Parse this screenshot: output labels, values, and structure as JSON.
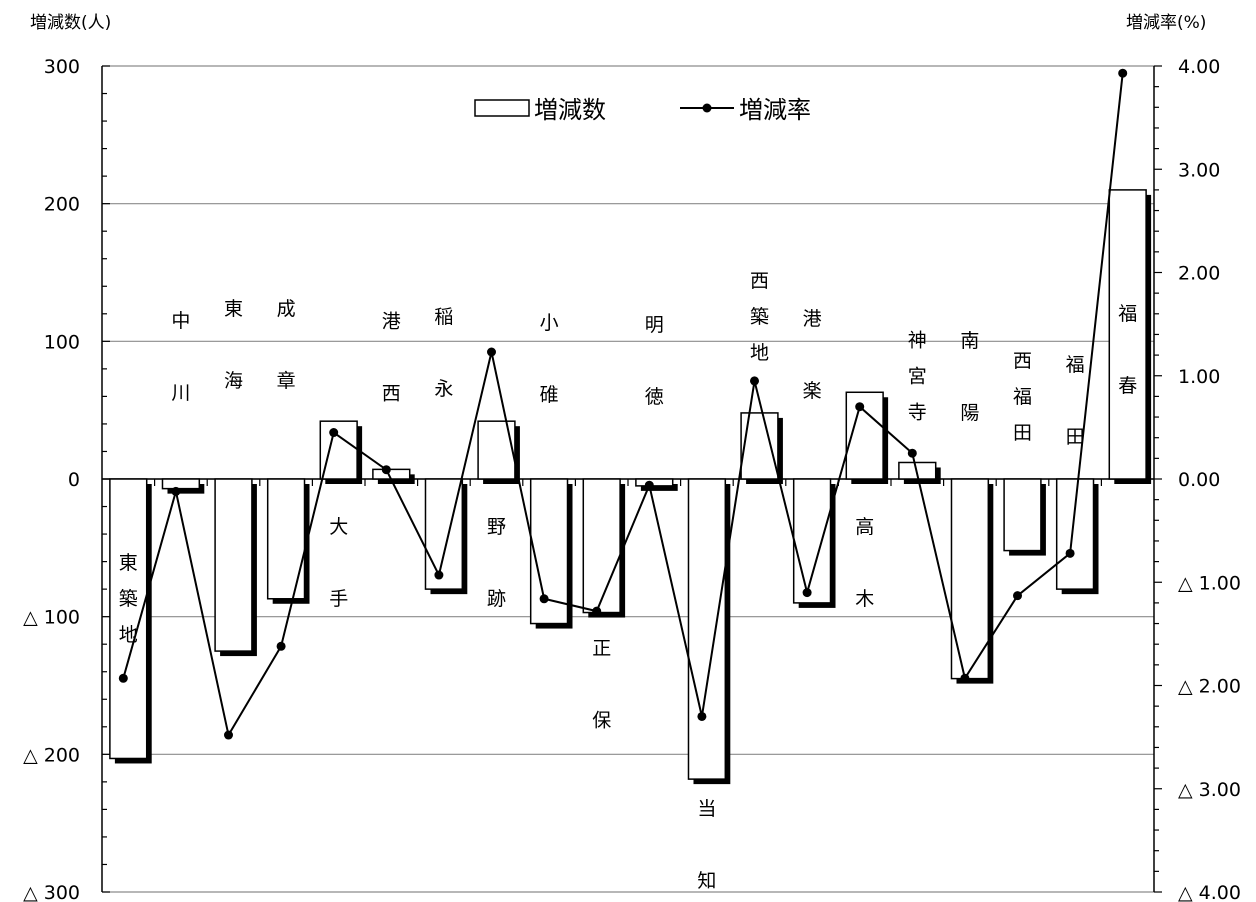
{
  "chart_data": {
    "type": "bar+line",
    "ylabel_left": "増減数(人)",
    "ylabel_right": "増減率(%)",
    "ylim_left": [
      -300,
      300
    ],
    "ylim_right": [
      -4.0,
      4.0
    ],
    "yticks_left": [
      "300",
      "200",
      "100",
      "0",
      "△ 100",
      "△ 200",
      "△ 300"
    ],
    "yticks_right": [
      "4.00",
      "3.00",
      "2.00",
      "1.00",
      "0.00",
      "△ 1.00",
      "△ 2.00",
      "△ 3.00",
      "△ 4.00"
    ],
    "grid": true,
    "legend": {
      "placement": "top-center",
      "bar_label": "増減数",
      "line_label": "増減率"
    },
    "categories": [
      "東築地",
      "中川",
      "東海",
      "成章",
      "大手",
      "港西",
      "稲永",
      "野跡",
      "小碓",
      "正保",
      "明徳",
      "当知",
      "西築地",
      "港楽",
      "高木",
      "神宮寺",
      "南陽",
      "西福田",
      "福田",
      "福春"
    ],
    "category_labels": [
      "東\n築\n地",
      "中\n\n川",
      "東\n\n海",
      "成\n\n章",
      "大\n\n手",
      "港\n\n西",
      "稲\n\n永",
      "野\n\n跡",
      "小\n\n碓",
      "正\n\n保",
      "明\n\n徳",
      "当\n\n知",
      "西\n築\n地",
      "港\n\n楽",
      "高\n\n木",
      "神\n宮\n寺",
      "南\n\n陽",
      "西\n福\n田",
      "福\n\n田",
      "福\n\n春"
    ],
    "series": [
      {
        "name": "増減数",
        "type": "bar",
        "values": [
          -203,
          -7,
          -125,
          -87,
          42,
          7,
          -80,
          42,
          -105,
          -97,
          -5,
          -218,
          48,
          -90,
          63,
          12,
          -145,
          -52,
          -80,
          210
        ]
      },
      {
        "name": "増減率",
        "type": "line",
        "values": [
          -1.93,
          -0.12,
          -2.48,
          -1.62,
          0.45,
          0.09,
          -0.93,
          1.23,
          -1.16,
          -1.28,
          -0.06,
          -2.3,
          0.95,
          -1.1,
          0.7,
          0.25,
          -1.93,
          -1.13,
          -0.72,
          3.93
        ]
      }
    ]
  }
}
